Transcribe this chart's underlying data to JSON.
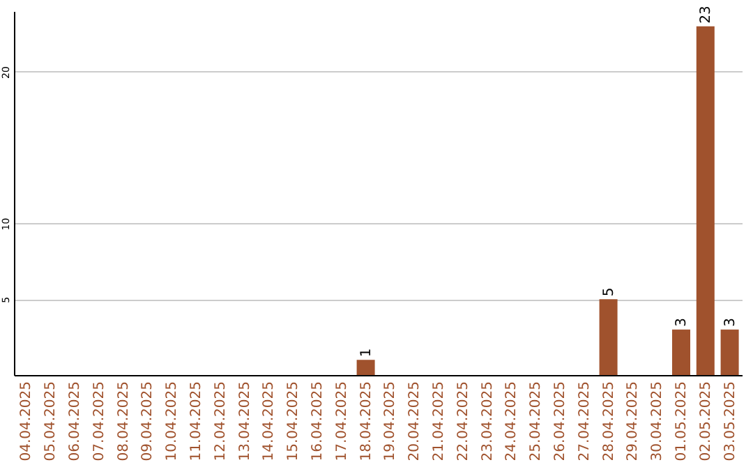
{
  "chart_data": {
    "type": "bar",
    "categories": [
      "04.04.2025",
      "05.04.2025",
      "06.04.2025",
      "07.04.2025",
      "08.04.2025",
      "09.04.2025",
      "10.04.2025",
      "11.04.2025",
      "12.04.2025",
      "13.04.2025",
      "14.04.2025",
      "15.04.2025",
      "16.04.2025",
      "17.04.2025",
      "18.04.2025",
      "19.04.2025",
      "20.04.2025",
      "21.04.2025",
      "22.04.2025",
      "23.04.2025",
      "24.04.2025",
      "25.04.2025",
      "26.04.2025",
      "27.04.2025",
      "28.04.2025",
      "29.04.2025",
      "30.04.2025",
      "01.05.2025",
      "02.05.2025",
      "03.05.2025"
    ],
    "values": [
      0,
      0,
      0,
      0,
      0,
      0,
      0,
      0,
      0,
      0,
      0,
      0,
      0,
      0,
      1,
      0,
      0,
      0,
      0,
      0,
      0,
      0,
      0,
      0,
      5,
      0,
      0,
      3,
      23,
      3
    ],
    "value_labels": [
      null,
      null,
      null,
      null,
      null,
      null,
      null,
      null,
      null,
      null,
      null,
      null,
      null,
      null,
      "1",
      null,
      null,
      null,
      null,
      null,
      null,
      null,
      null,
      null,
      "5",
      null,
      null,
      "3",
      "23",
      "3"
    ],
    "color": "#a0522d",
    "ylim": [
      0,
      24
    ],
    "yticks": [
      5,
      10,
      20
    ],
    "grid": "y"
  }
}
